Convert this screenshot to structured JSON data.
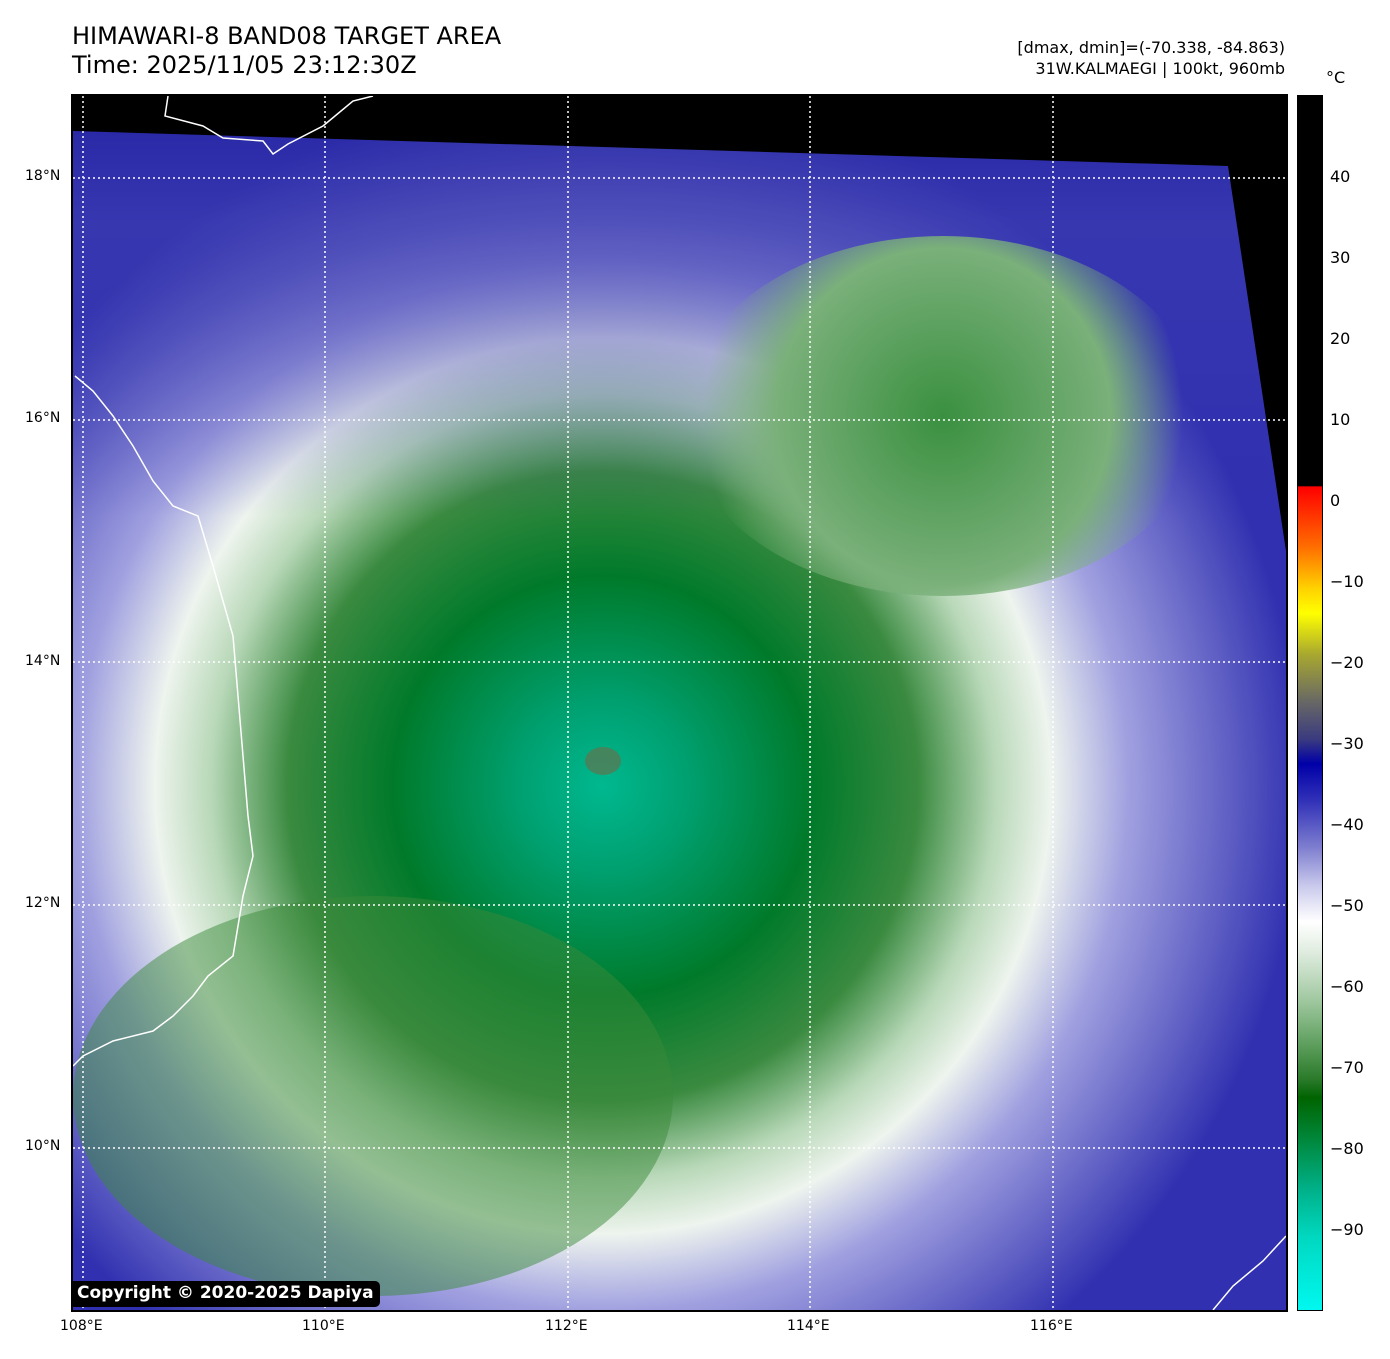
{
  "header": {
    "title": "HIMAWARI-8 BAND08 TARGET AREA",
    "time": "Time: 2025/11/05 23:12:30Z",
    "dminmax": "[dmax, dmin]=(-70.338, -84.863)",
    "storm": "31W.KALMAEGI | 100kt, 960mb"
  },
  "map": {
    "lon_ticks": [
      "108°E",
      "110°E",
      "112°E",
      "114°E",
      "116°E"
    ],
    "lat_ticks": [
      "18°N",
      "16°N",
      "14°N",
      "12°N",
      "10°N"
    ],
    "copyright": "Copyright © 2020-2025 Dapiya"
  },
  "colorbar": {
    "unit": "°C",
    "ticks": [
      "40",
      "30",
      "20",
      "10",
      "0",
      "−10",
      "−20",
      "−30",
      "−40",
      "−50",
      "−60",
      "−70",
      "−80",
      "−90"
    ],
    "range": [
      -100,
      50
    ]
  },
  "colors": {
    "eye_green": "#00a070",
    "ocean_blue": "#1818a8"
  }
}
